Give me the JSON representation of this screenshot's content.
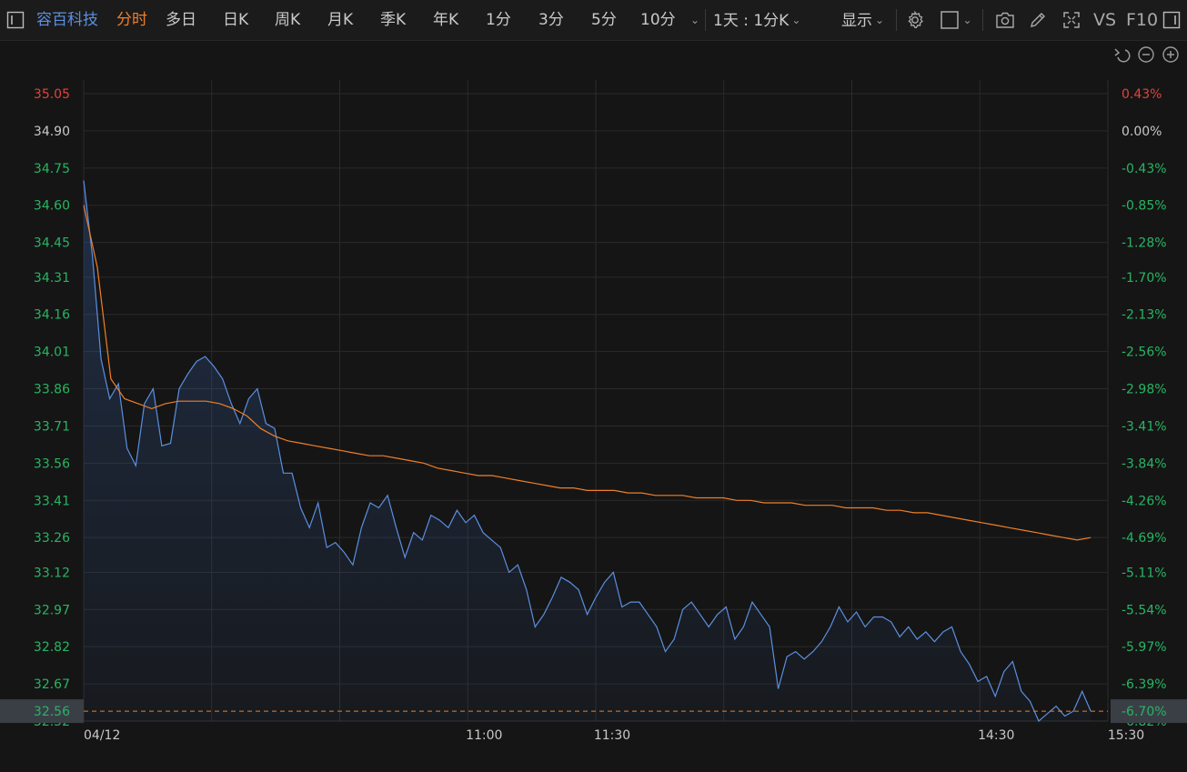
{
  "toolbar": {
    "stock_name": "容百科技",
    "periods": [
      "分时",
      "多日",
      "日K",
      "周K",
      "月K",
      "季K",
      "年K",
      "1分",
      "3分",
      "5分",
      "10分"
    ],
    "active_period": "分时",
    "range_selector": "1天 : 1分K",
    "display_label": "显示",
    "vs_label": "VS",
    "f10_label": "F10",
    "icons": [
      "sidebar-toggle-icon",
      "settings-gear-icon",
      "square-checkbox-icon",
      "camera-icon",
      "pencil-draw-icon",
      "fullscreen-icon",
      "panel-right-icon"
    ]
  },
  "chart_controls": {
    "icons": [
      "undo-icon",
      "zoom-out-icon",
      "zoom-in-icon"
    ]
  },
  "colors": {
    "price_line": "#5b8fe0",
    "avg_line": "#ef7f2a",
    "up": "#e0433a",
    "down": "#28b463",
    "neutral": "#c8c8c8",
    "grid": "#2a2a2a"
  },
  "chart_data": {
    "type": "line",
    "date_label": "04/12",
    "x_ticks": [
      "04/12",
      "11:00",
      "11:30",
      "14:30",
      "15:30"
    ],
    "y_left_ticks": [
      "35.05",
      "34.90",
      "34.75",
      "34.60",
      "34.45",
      "34.31",
      "34.16",
      "34.01",
      "33.86",
      "33.71",
      "33.56",
      "33.41",
      "33.26",
      "33.12",
      "32.97",
      "32.82",
      "32.67",
      "32.52"
    ],
    "y_right_ticks": [
      "0.43%",
      "0.00%",
      "-0.43%",
      "-0.85%",
      "-1.28%",
      "-1.70%",
      "-2.13%",
      "-2.56%",
      "-2.98%",
      "-3.41%",
      "-3.84%",
      "-4.26%",
      "-4.69%",
      "-5.11%",
      "-5.54%",
      "-5.97%",
      "-6.39%",
      "-6.82%"
    ],
    "ylim": [
      32.52,
      35.05
    ],
    "prev_close": 34.9,
    "session_minutes": 240,
    "current_price": "32.56",
    "current_change_pct": "-6.70%",
    "series": [
      {
        "name": "price",
        "values": [
          34.7,
          34.4,
          33.98,
          33.82,
          33.88,
          33.62,
          33.55,
          33.8,
          33.86,
          33.63,
          33.64,
          33.86,
          33.92,
          33.97,
          33.99,
          33.95,
          33.9,
          33.8,
          33.72,
          33.82,
          33.86,
          33.72,
          33.7,
          33.52,
          33.52,
          33.38,
          33.3,
          33.4,
          33.22,
          33.24,
          33.2,
          33.15,
          33.3,
          33.4,
          33.38,
          33.43,
          33.3,
          33.18,
          33.28,
          33.25,
          33.35,
          33.33,
          33.3,
          33.37,
          33.32,
          33.35,
          33.28,
          33.25,
          33.22,
          33.12,
          33.15,
          33.05,
          32.9,
          32.95,
          33.02,
          33.1,
          33.08,
          33.05,
          32.95,
          33.02,
          33.08,
          33.12,
          32.98,
          33.0,
          33.0,
          32.95,
          32.9,
          32.8,
          32.85,
          32.97,
          33.0,
          32.95,
          32.9,
          32.95,
          32.98,
          32.85,
          32.9,
          33.0,
          32.95,
          32.9,
          32.65,
          32.78,
          32.8,
          32.77,
          32.8,
          32.84,
          32.9,
          32.98,
          32.92,
          32.96,
          32.9,
          32.94,
          32.94,
          32.92,
          32.86,
          32.9,
          32.85,
          32.88,
          32.84,
          32.88,
          32.9,
          32.8,
          32.75,
          32.68,
          32.7,
          32.62,
          32.72,
          32.76,
          32.64,
          32.6,
          32.52,
          32.55,
          32.58,
          32.54,
          32.56,
          32.64,
          32.56
        ]
      },
      {
        "name": "avg",
        "values": [
          34.6,
          34.35,
          33.9,
          33.82,
          33.8,
          33.78,
          33.8,
          33.81,
          33.81,
          33.81,
          33.8,
          33.78,
          33.75,
          33.7,
          33.67,
          33.65,
          33.64,
          33.63,
          33.62,
          33.61,
          33.6,
          33.59,
          33.59,
          33.58,
          33.57,
          33.56,
          33.54,
          33.53,
          33.52,
          33.51,
          33.51,
          33.5,
          33.49,
          33.48,
          33.47,
          33.46,
          33.46,
          33.45,
          33.45,
          33.45,
          33.44,
          33.44,
          33.43,
          33.43,
          33.43,
          33.42,
          33.42,
          33.42,
          33.41,
          33.41,
          33.4,
          33.4,
          33.4,
          33.39,
          33.39,
          33.39,
          33.38,
          33.38,
          33.38,
          33.37,
          33.37,
          33.36,
          33.36,
          33.35,
          33.34,
          33.33,
          33.32,
          33.31,
          33.3,
          33.29,
          33.28,
          33.27,
          33.26,
          33.25,
          33.26
        ]
      }
    ]
  }
}
